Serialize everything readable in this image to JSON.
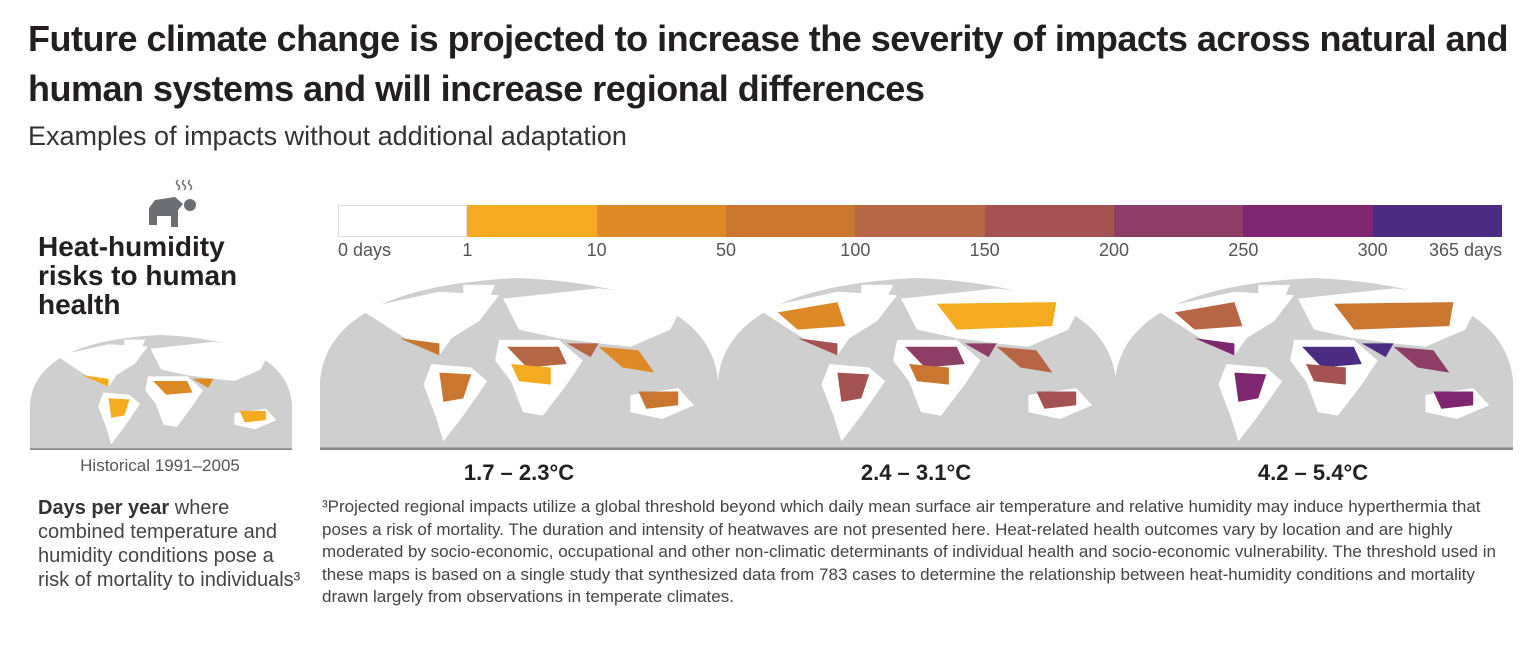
{
  "title": "Future climate change is projected to increase the severity of impacts across natural and human systems and will increase regional differences",
  "subtitle": "Examples of impacts without additional adaptation",
  "hazard": {
    "icon": "heat-stress-person-icon",
    "title": "Heat-humidity risks to human health"
  },
  "legend": {
    "ticks": [
      "0 days",
      "1",
      "10",
      "50",
      "100",
      "150",
      "200",
      "250",
      "300",
      "365 days"
    ],
    "colors": [
      "#ffffff",
      "#f5ab1f",
      "#dd8a26",
      "#c97730",
      "#b66545",
      "#a45352",
      "#8e3d66",
      "#7e2670",
      "#4c2b82"
    ]
  },
  "maps": [
    {
      "label": "Historical 1991–2005",
      "level": 0
    },
    {
      "label": "1.7 – 2.3°C",
      "level": 1
    },
    {
      "label": "2.4 – 3.1°C",
      "level": 2
    },
    {
      "label": "4.2 – 5.4°C",
      "level": 3
    }
  ],
  "description": {
    "bold": "Days per year",
    "rest": " where combined temperature and humidity conditions pose a risk of mortality to individuals³"
  },
  "footnote": "³Projected regional impacts utilize a global threshold beyond which daily mean surface air temperature and relative humidity may induce hyperthermia that poses a risk of mortality. The duration and intensity of heatwaves are not presented here. Heat-related health outcomes vary by location and are highly moderated by socio-economic, occupational and other non-climatic determinants of individual health and socio-economic vulnerability. The threshold used in these maps is based on a single study that synthesized data from 783 cases to determine the relationship between heat-humidity conditions and mortality drawn largely from observations in temperate climates."
}
